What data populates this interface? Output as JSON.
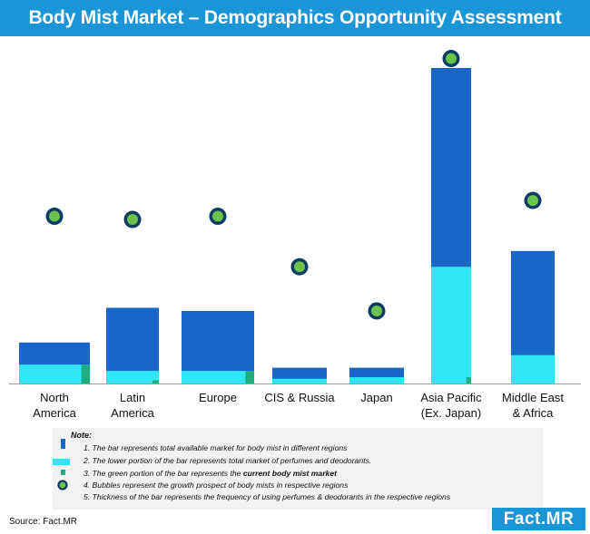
{
  "header": {
    "title": "Body Mist Market – Demographics Opportunity Assessment"
  },
  "colors": {
    "total_market": "#1766c8",
    "perfume_market": "#2ee6f5",
    "current_market": "#1fae80",
    "bubble_fill": "#6cc24a",
    "bubble_ring": "#0d3d63",
    "title_bar": "#1a95d6"
  },
  "chart_data": {
    "type": "bar",
    "categories": [
      [
        "North",
        "America"
      ],
      [
        "Latin",
        "America"
      ],
      [
        "Europe"
      ],
      [
        "CIS & Russia"
      ],
      [
        "Japan"
      ],
      [
        "Asia Pacific",
        "(Ex. Japan)"
      ],
      [
        "Middle East",
        "& Africa"
      ]
    ],
    "ylim": [
      0,
      100
    ],
    "grid": false,
    "bar_thickness": [
      78,
      58,
      80,
      60,
      60,
      44,
      48
    ],
    "series": [
      {
        "values": [
          13,
          24,
          23,
          5,
          5,
          100,
          42
        ]
      },
      {
        "values": [
          6,
          4,
          4,
          1.5,
          2,
          37,
          9
        ]
      },
      {
        "values": [
          6,
          1,
          4,
          0,
          0,
          2,
          0
        ]
      },
      {
        "values": [
          53,
          52,
          53,
          37,
          23,
          103,
          58
        ]
      }
    ]
  },
  "notes": {
    "title": "Note:",
    "items": [
      "1. The bar represents total available market for body mist in different regions",
      "2. The lower portion of the bar represents total market of perfumes and deodorants.",
      "3. The green portion of the bar represents the ",
      "4. Bubbles represent the growth prospect of body mists in respective regions",
      "5. Thickness of the bar represents the frequency of using perfumes & deodorants in the respective regions"
    ],
    "item3_bold": "current body mist market"
  },
  "footer": {
    "source": "Source: Fact.MR",
    "brand": "Fact",
    "brand_suffix": ".MR"
  }
}
